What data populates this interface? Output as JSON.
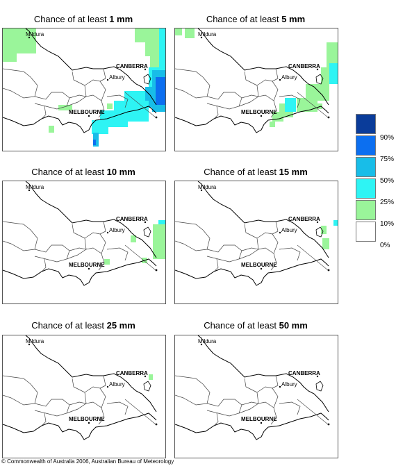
{
  "panels": [
    {
      "prefix": "Chance of at least ",
      "amount": "1 mm"
    },
    {
      "prefix": "Chance of at least ",
      "amount": "5 mm"
    },
    {
      "prefix": "Chance of at least ",
      "amount": "10 mm"
    },
    {
      "prefix": "Chance of at least ",
      "amount": "15 mm"
    },
    {
      "prefix": "Chance of at least ",
      "amount": "25 mm"
    },
    {
      "prefix": "Chance of at least ",
      "amount": "50 mm"
    }
  ],
  "cities": {
    "mildura": "Mildura",
    "canberra": "CANBERRA",
    "albury": "Albury",
    "melbourne": "MELBOURNE"
  },
  "legend": {
    "labels": [
      "90%",
      "75%",
      "50%",
      "25%",
      "10%",
      "0%"
    ],
    "colors": [
      "#0a3c9a",
      "#0c6ff0",
      "#18bde8",
      "#2ef4f4",
      "#9af59a",
      "#ffffff"
    ]
  },
  "copyright": "© Commonwealth of Australia 2006, Australian Bureau of Meteorology"
}
